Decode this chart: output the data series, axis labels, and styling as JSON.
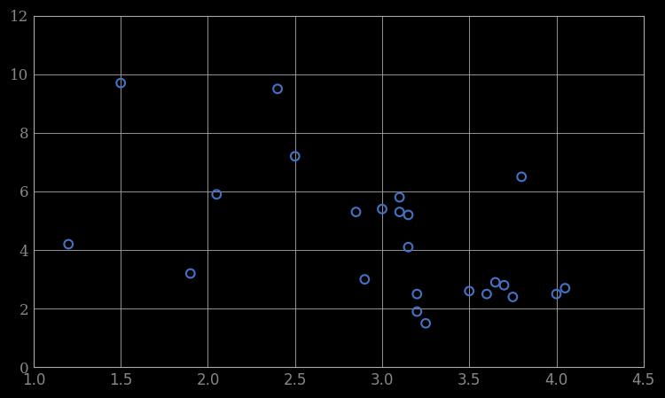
{
  "x": [
    1.2,
    1.5,
    1.9,
    2.05,
    2.4,
    2.5,
    2.85,
    2.9,
    3.0,
    3.1,
    3.1,
    3.15,
    3.15,
    3.2,
    3.2,
    3.25,
    3.5,
    3.6,
    3.65,
    3.7,
    3.75,
    3.8,
    4.0,
    4.05
  ],
  "y": [
    4.2,
    9.7,
    3.2,
    5.9,
    9.5,
    7.2,
    5.3,
    3.0,
    5.4,
    5.8,
    5.3,
    5.2,
    4.1,
    2.5,
    1.9,
    1.5,
    2.6,
    2.5,
    2.9,
    2.8,
    2.4,
    6.5,
    2.5,
    2.7
  ],
  "xlim": [
    1.0,
    4.5
  ],
  "ylim": [
    0,
    12
  ],
  "xticks": [
    1.0,
    1.5,
    2.0,
    2.5,
    3.0,
    3.5,
    4.0,
    4.5
  ],
  "yticks": [
    0,
    2,
    4,
    6,
    8,
    10,
    12
  ],
  "marker_color": "#4472C4",
  "marker_size": 7,
  "marker_linewidth": 1.5,
  "background_color": "#000000",
  "grid_color": "#AAAAAA",
  "tick_color": "#888888",
  "spine_color": "#AAAAAA",
  "tick_fontsize": 12
}
